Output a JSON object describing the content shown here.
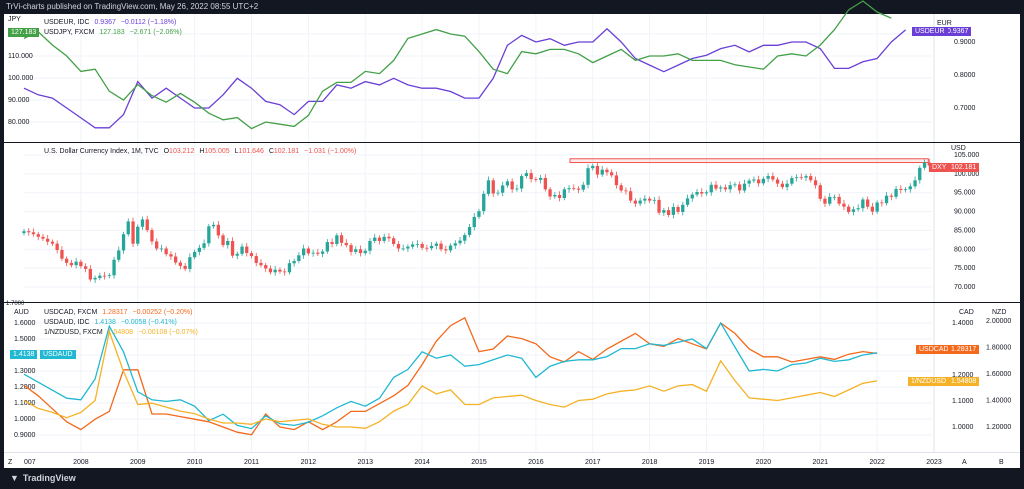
{
  "header": {
    "text": "TrVi-charts published on TradingView.com, May 26, 2022 08:55 UTC+2"
  },
  "footer": {
    "logo": "TradingView"
  },
  "colors": {
    "purple": "#6a3fd6",
    "green": "#43a047",
    "red": "#ef5350",
    "teal": "#26a69a",
    "orange": "#f4691b",
    "cyan": "#20b8d2",
    "yellow": "#f5b226",
    "blue": "#2962ff"
  },
  "xaxis": {
    "labels": [
      "007",
      "2008",
      "2009",
      "2010",
      "2011",
      "2012",
      "2013",
      "2014",
      "2015",
      "2016",
      "2017",
      "2018",
      "2019",
      "2020",
      "2021",
      "2022",
      "2023"
    ],
    "left_btn": "Z",
    "right_btns": [
      "A",
      "B"
    ]
  },
  "pane1": {
    "left_unit": "JPY",
    "left_ticks": [
      "120.000",
      "110.000",
      "100.000",
      "90.000",
      "80.000"
    ],
    "right_unit": "EUR",
    "right_ticks": [
      "0.9000",
      "0.8000",
      "0.7000"
    ],
    "left_tag": "127.183",
    "left_tag2": "USDJPY",
    "right_tag_name": "USDEUR",
    "right_tag_val": "0.9367",
    "legend": [
      {
        "name": "USDEUR, IDC",
        "value": "0.9367",
        "change": "−0.0112 (−1.18%)"
      },
      {
        "name": "USDJPY, FXCM",
        "value": "127.183",
        "change": "−2.671 (−2.06%)"
      }
    ]
  },
  "pane2": {
    "legend_title": "U.S. Dollar Currency Index, 1M, TVC",
    "ohlc": {
      "O": "103.212",
      "H": "105.005",
      "L": "101.646",
      "C": "102.181",
      "chg": "−1.031 (−1.00%)"
    },
    "right_unit": "USD",
    "right_ticks": [
      "105.000",
      "100.000",
      "95.000",
      "90.000",
      "85.000",
      "80.000",
      "75.000",
      "70.000"
    ],
    "tag_name": "DXY",
    "tag_val": "102.181"
  },
  "pane3": {
    "left_unit": "AUD",
    "left_ticks": [
      "1.6000",
      "1.5000",
      "1.4000",
      "1.3000",
      "1.2000",
      "1.1000",
      "1.0000",
      "0.9000"
    ],
    "left_cut": "1.7000",
    "left_tag_val": "1.4138",
    "left_tag_name": "USDAUD",
    "mid_unit": "CAD",
    "mid_ticks": [
      "1.4000",
      "1.3000",
      "1.2000",
      "1.1000",
      "1.0000"
    ],
    "right_unit": "NZD",
    "right_ticks": [
      "2.00000",
      "1.80000",
      "1.60000",
      "1.40000",
      "1.20000"
    ],
    "tags": [
      {
        "name": "USDCAD",
        "val": "1.28317"
      },
      {
        "name": "1/NZDUSD",
        "val": "1.54808"
      }
    ],
    "legend": [
      {
        "name": "USDCAD, FXCM",
        "value": "1.28317",
        "change": "−0.00252 (−0.20%)"
      },
      {
        "name": "USDAUD, IDC",
        "value": "1.4138",
        "change": "−0.0058 (−0.41%)"
      },
      {
        "name": "1/NZDUSD, FXCM",
        "value": "1.54808",
        "change": "−0.00108 (−0.07%)"
      }
    ]
  },
  "chart_data": [
    {
      "type": "line",
      "x_start": "2007-01",
      "x_step": "quarter",
      "series": [
        {
          "name": "USDEUR",
          "axis": "EUR",
          "values": [
            0.76,
            0.74,
            0.73,
            0.7,
            0.67,
            0.64,
            0.64,
            0.68,
            0.78,
            0.73,
            0.76,
            0.73,
            0.7,
            0.7,
            0.74,
            0.79,
            0.76,
            0.72,
            0.71,
            0.68,
            0.72,
            0.72,
            0.77,
            0.76,
            0.78,
            0.77,
            0.79,
            0.77,
            0.76,
            0.76,
            0.75,
            0.73,
            0.73,
            0.79,
            0.89,
            0.92,
            0.9,
            0.91,
            0.89,
            0.9,
            0.9,
            0.94,
            0.9,
            0.85,
            0.83,
            0.81,
            0.83,
            0.85,
            0.86,
            0.88,
            0.89,
            0.87,
            0.89,
            0.89,
            0.9,
            0.9,
            0.88,
            0.82,
            0.82,
            0.84,
            0.85,
            0.9,
            0.9367
          ]
        },
        {
          "name": "USDJPY",
          "axis": "JPY",
          "values": [
            118,
            121,
            115,
            110,
            103,
            104,
            94,
            90,
            97,
            92,
            89,
            93,
            89,
            84,
            81,
            82,
            77,
            80,
            79,
            78,
            83,
            94,
            98,
            98,
            103,
            102,
            108,
            118,
            120,
            122,
            120,
            119,
            112,
            104,
            102,
            112,
            111,
            113,
            113,
            111,
            107,
            110,
            113,
            108,
            110,
            110,
            111,
            108,
            108,
            108,
            106,
            105,
            104,
            110,
            111,
            110,
            115,
            122,
            131,
            135,
            130,
            127.183
          ]
        }
      ]
    },
    {
      "type": "candlestick",
      "name": "DXY",
      "x_start": "2007-01",
      "x_step": "month",
      "resistance": [
        103.0,
        104.0
      ],
      "ohlc_last": {
        "open": 103.212,
        "high": 105.005,
        "low": 101.646,
        "close": 102.181
      },
      "closes": [
        84.8,
        84.5,
        84.0,
        83.3,
        82.8,
        82.0,
        81.5,
        79.8,
        77.5,
        76.4,
        75.8,
        76.7,
        75.5,
        74.8,
        72.0,
        72.4,
        73.0,
        72.9,
        73.1,
        77.2,
        79.7,
        84.0,
        87.4,
        81.5,
        86.0,
        87.9,
        85.1,
        82.1,
        80.2,
        80.2,
        78.7,
        78.1,
        76.5,
        75.6,
        74.8,
        77.9,
        79.3,
        80.4,
        81.6,
        86.1,
        86.5,
        83.7,
        81.1,
        82.2,
        78.3,
        78.8,
        80.7,
        79.0,
        78.2,
        76.4,
        75.8,
        74.9,
        73.9,
        74.6,
        74.1,
        73.9,
        76.3,
        76.9,
        78.4,
        80.2,
        78.9,
        79.1,
        78.8,
        79.4,
        81.9,
        81.4,
        83.7,
        81.7,
        81.1,
        79.3,
        80.0,
        79.0,
        79.6,
        82.2,
        83.1,
        82.2,
        83.3,
        82.9,
        81.4,
        80.2,
        80.2,
        80.7,
        81.3,
        81.4,
        80.4,
        80.3,
        80.9,
        81.5,
        80.0,
        79.7,
        81.0,
        81.6,
        82.3,
        83.8,
        85.9,
        88.6,
        90.1,
        94.7,
        98.3,
        94.8,
        95.0,
        96.9,
        98.0,
        95.9,
        96.1,
        99.4,
        100.2,
        98.6,
        98.4,
        98.9,
        95.9,
        94.0,
        94.4,
        93.6,
        95.9,
        96.2,
        96.1,
        95.8,
        97.1,
        101.5,
        102.1,
        99.8,
        101.1,
        100.4,
        99.6,
        97.0,
        95.6,
        95.4,
        92.9,
        92.1,
        92.9,
        93.4,
        92.9,
        93.1,
        89.7,
        90.4,
        89.1,
        91.2,
        89.9,
        91.8,
        93.5,
        94.5,
        95.2,
        94.8,
        95.1,
        97.1,
        96.1,
        96.4,
        95.9,
        97.0,
        97.2,
        95.6,
        97.4,
        98.2,
        98.5,
        97.5,
        98.7,
        99.4,
        98.5,
        97.4,
        96.5,
        97.4,
        98.9,
        99.1,
        99.0,
        99.4,
        98.3,
        97.0,
        93.4,
        92.1,
        93.9,
        93.9,
        92.1,
        91.3,
        89.9,
        90.6,
        90.9,
        93.2,
        91.3,
        90.0,
        92.4,
        92.2,
        94.2,
        93.9,
        96.0,
        95.7,
        95.9,
        96.7,
        98.3,
        101.6,
        103.0,
        102.181
      ]
    },
    {
      "type": "line",
      "x_start": "2007-01",
      "x_step": "quarter",
      "series": [
        {
          "name": "USDCAD",
          "axis": "CAD",
          "values": [
            1.16,
            1.12,
            1.07,
            1.02,
            0.99,
            1.03,
            1.06,
            1.22,
            1.22,
            1.05,
            1.05,
            1.04,
            1.03,
            1.02,
            1.0,
            0.98,
            0.97,
            1.05,
            1.0,
            0.99,
            1.02,
            0.99,
            1.02,
            1.06,
            1.06,
            1.09,
            1.12,
            1.16,
            1.24,
            1.33,
            1.39,
            1.42,
            1.29,
            1.3,
            1.35,
            1.34,
            1.32,
            1.27,
            1.25,
            1.29,
            1.26,
            1.3,
            1.33,
            1.36,
            1.32,
            1.31,
            1.34,
            1.32,
            1.3,
            1.4,
            1.36,
            1.3,
            1.27,
            1.27,
            1.25,
            1.26,
            1.27,
            1.26,
            1.28,
            1.29,
            1.28317
          ]
        },
        {
          "name": "USDAUD",
          "axis": "AUD",
          "values": [
            1.28,
            1.23,
            1.18,
            1.13,
            1.12,
            1.25,
            1.58,
            1.42,
            1.17,
            1.12,
            1.11,
            1.12,
            1.08,
            0.99,
            1.03,
            0.96,
            0.94,
            1.02,
            0.97,
            0.96,
            0.98,
            1.02,
            1.07,
            1.11,
            1.08,
            1.13,
            1.26,
            1.31,
            1.42,
            1.38,
            1.4,
            1.33,
            1.34,
            1.37,
            1.4,
            1.38,
            1.26,
            1.33,
            1.36,
            1.37,
            1.37,
            1.39,
            1.44,
            1.44,
            1.47,
            1.46,
            1.48,
            1.5,
            1.44,
            1.6,
            1.45,
            1.3,
            1.31,
            1.3,
            1.34,
            1.35,
            1.38,
            1.36,
            1.37,
            1.4,
            1.4138
          ]
        },
        {
          "name": "1/NZDUSD",
          "axis": "NZD",
          "values": [
            1.4,
            1.34,
            1.31,
            1.27,
            1.31,
            1.4,
            1.92,
            1.62,
            1.37,
            1.38,
            1.35,
            1.32,
            1.3,
            1.26,
            1.23,
            1.23,
            1.22,
            1.26,
            1.24,
            1.25,
            1.26,
            1.22,
            1.2,
            1.2,
            1.19,
            1.24,
            1.32,
            1.37,
            1.51,
            1.45,
            1.48,
            1.37,
            1.37,
            1.42,
            1.43,
            1.44,
            1.4,
            1.37,
            1.35,
            1.4,
            1.41,
            1.45,
            1.47,
            1.48,
            1.51,
            1.47,
            1.51,
            1.52,
            1.47,
            1.7,
            1.55,
            1.42,
            1.41,
            1.4,
            1.42,
            1.44,
            1.46,
            1.43,
            1.48,
            1.53,
            1.54808
          ]
        }
      ]
    }
  ]
}
